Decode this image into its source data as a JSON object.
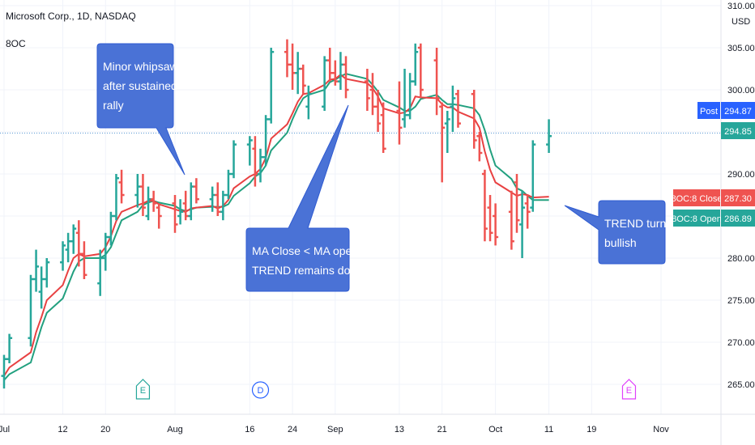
{
  "header": {
    "symbol": "Microsoft Corp., 1D, NASDAQ",
    "indicator": "8OC",
    "currency": "USD"
  },
  "colors": {
    "up": "#26a69a",
    "down": "#ef5350",
    "ma_close": "#e84142",
    "ma_open": "#22a07f",
    "callout": "#4a72d6",
    "callout_border": "#2f5bd1",
    "price_line": "#5b9bd5"
  },
  "price_tags": [
    {
      "label": "Post",
      "value": "294.87",
      "price": 294.87,
      "color": "#2962ff"
    },
    {
      "label": "",
      "value": "294.85",
      "price": 294.85,
      "color": "#26a69a"
    },
    {
      "label": "8OC:8 Close",
      "value": "287.30",
      "price": 287.3,
      "color": "#ef5350"
    },
    {
      "label": "8OC:8 Open",
      "value": "286.89",
      "price": 286.89,
      "color": "#26a69a"
    }
  ],
  "annotations": [
    {
      "lines": [
        "Minor whipsaw",
        "after sustained",
        "rally"
      ]
    },
    {
      "lines": [
        "MA Close < MA open",
        "TREND remains down"
      ]
    },
    {
      "lines": [
        "TREND turns",
        "bullish"
      ]
    }
  ],
  "events": [
    {
      "letter": "E",
      "date": "2021-07-27",
      "color": "#26a69a",
      "shape": "earnings"
    },
    {
      "letter": "D",
      "date": "2021-08-18",
      "color": "#2962ff",
      "shape": "dividend"
    },
    {
      "letter": "E",
      "date": "2021-10-26",
      "color": "#e040fb",
      "shape": "earnings"
    }
  ],
  "chart_data": {
    "type": "ohlc",
    "x_ticks": [
      "Jul",
      "12",
      "20",
      "Aug",
      "16",
      "24",
      "Sep",
      "13",
      "21",
      "Oct",
      "11",
      "19",
      "Nov"
    ],
    "y_ticks": [
      "265.00",
      "270.00",
      "275.00",
      "280.00",
      "285.00",
      "290.00",
      "295.00",
      "300.00",
      "305.00",
      "310.00"
    ],
    "ylim": [
      262,
      310
    ],
    "candles": [
      {
        "d": "2021-07-01",
        "o": 266.0,
        "h": 268.5,
        "l": 264.5,
        "c": 268.0
      },
      {
        "d": "2021-07-02",
        "o": 268.0,
        "h": 271.0,
        "l": 267.5,
        "c": 270.5
      },
      {
        "d": "2021-07-06",
        "o": 270.5,
        "h": 278.0,
        "l": 269.5,
        "c": 277.5
      },
      {
        "d": "2021-07-07",
        "o": 277.5,
        "h": 281.0,
        "l": 276.0,
        "c": 279.0
      },
      {
        "d": "2021-07-08",
        "o": 276.0,
        "h": 279.0,
        "l": 274.0,
        "c": 277.5
      },
      {
        "d": "2021-07-09",
        "o": 277.5,
        "h": 280.0,
        "l": 276.5,
        "c": 279.5
      },
      {
        "d": "2021-07-12",
        "o": 279.5,
        "h": 282.0,
        "l": 278.5,
        "c": 281.5
      },
      {
        "d": "2021-07-13",
        "o": 281.0,
        "h": 283.0,
        "l": 279.5,
        "c": 282.0
      },
      {
        "d": "2021-07-14",
        "o": 282.0,
        "h": 284.0,
        "l": 280.5,
        "c": 283.5
      },
      {
        "d": "2021-07-15",
        "o": 283.0,
        "h": 284.5,
        "l": 279.0,
        "c": 280.5
      },
      {
        "d": "2021-07-16",
        "o": 280.5,
        "h": 282.0,
        "l": 277.5,
        "c": 278.0
      },
      {
        "d": "2021-07-19",
        "o": 277.0,
        "h": 281.0,
        "l": 275.5,
        "c": 280.0
      },
      {
        "d": "2021-07-20",
        "o": 280.0,
        "h": 283.0,
        "l": 278.5,
        "c": 282.5
      },
      {
        "d": "2021-07-21",
        "o": 282.5,
        "h": 285.5,
        "l": 281.5,
        "c": 285.0
      },
      {
        "d": "2021-07-22",
        "o": 285.0,
        "h": 290.0,
        "l": 284.5,
        "c": 289.5
      },
      {
        "d": "2021-07-23",
        "o": 289.0,
        "h": 290.5,
        "l": 286.5,
        "c": 287.5
      },
      {
        "d": "2021-07-26",
        "o": 287.5,
        "h": 290.0,
        "l": 286.0,
        "c": 288.5
      },
      {
        "d": "2021-07-27",
        "o": 288.5,
        "h": 290.0,
        "l": 285.0,
        "c": 286.0
      },
      {
        "d": "2021-07-28",
        "o": 285.0,
        "h": 288.5,
        "l": 284.5,
        "c": 287.0
      },
      {
        "d": "2021-07-29",
        "o": 287.0,
        "h": 288.0,
        "l": 285.5,
        "c": 286.5
      },
      {
        "d": "2021-07-30",
        "o": 286.0,
        "h": 286.5,
        "l": 283.5,
        "c": 285.0
      },
      {
        "d": "2021-08-02",
        "o": 286.5,
        "h": 287.5,
        "l": 283.0,
        "c": 284.0
      },
      {
        "d": "2021-08-03",
        "o": 285.0,
        "h": 287.0,
        "l": 284.0,
        "c": 285.5
      },
      {
        "d": "2021-08-04",
        "o": 286.5,
        "h": 288.0,
        "l": 284.5,
        "c": 285.0
      },
      {
        "d": "2021-08-05",
        "o": 285.0,
        "h": 289.0,
        "l": 284.5,
        "c": 288.5
      },
      {
        "d": "2021-08-06",
        "o": 288.5,
        "h": 289.5,
        "l": 286.5,
        "c": 287.0
      },
      {
        "d": "2021-08-09",
        "o": 287.0,
        "h": 288.5,
        "l": 285.5,
        "c": 287.5
      },
      {
        "d": "2021-08-10",
        "o": 287.5,
        "h": 289.0,
        "l": 285.0,
        "c": 285.5
      },
      {
        "d": "2021-08-11",
        "o": 285.5,
        "h": 288.0,
        "l": 284.5,
        "c": 287.5
      },
      {
        "d": "2021-08-12",
        "o": 287.5,
        "h": 290.5,
        "l": 287.0,
        "c": 290.0
      },
      {
        "d": "2021-08-13",
        "o": 290.0,
        "h": 294.0,
        "l": 289.5,
        "c": 293.5
      },
      {
        "d": "2021-08-16",
        "o": 293.5,
        "h": 294.5,
        "l": 291.0,
        "c": 294.0
      },
      {
        "d": "2021-08-17",
        "o": 293.0,
        "h": 294.5,
        "l": 288.5,
        "c": 290.0
      },
      {
        "d": "2021-08-18",
        "o": 290.0,
        "h": 293.0,
        "l": 289.0,
        "c": 292.0
      },
      {
        "d": "2021-08-19",
        "o": 292.0,
        "h": 297.0,
        "l": 291.0,
        "c": 296.5
      },
      {
        "d": "2021-08-20",
        "o": 296.5,
        "h": 305.0,
        "l": 296.0,
        "c": 304.5
      },
      {
        "d": "2021-08-23",
        "o": 304.5,
        "h": 306.0,
        "l": 301.5,
        "c": 303.0
      },
      {
        "d": "2021-08-24",
        "o": 303.0,
        "h": 305.5,
        "l": 300.0,
        "c": 302.0
      },
      {
        "d": "2021-08-25",
        "o": 302.0,
        "h": 304.5,
        "l": 299.5,
        "c": 302.5
      },
      {
        "d": "2021-08-26",
        "o": 302.5,
        "h": 303.0,
        "l": 299.5,
        "c": 300.5
      },
      {
        "d": "2021-08-27",
        "o": 298.0,
        "h": 300.5,
        "l": 296.5,
        "c": 299.5
      },
      {
        "d": "2021-08-30",
        "o": 298.0,
        "h": 304.0,
        "l": 297.5,
        "c": 303.5
      },
      {
        "d": "2021-08-31",
        "o": 303.5,
        "h": 305.0,
        "l": 301.0,
        "c": 302.0
      },
      {
        "d": "2021-09-01",
        "o": 302.0,
        "h": 303.5,
        "l": 300.5,
        "c": 301.0
      },
      {
        "d": "2021-09-02",
        "o": 301.0,
        "h": 304.5,
        "l": 300.0,
        "c": 303.0
      },
      {
        "d": "2021-09-03",
        "o": 303.0,
        "h": 304.0,
        "l": 299.0,
        "c": 300.0
      },
      {
        "d": "2021-09-07",
        "o": 301.0,
        "h": 302.5,
        "l": 297.5,
        "c": 299.0
      },
      {
        "d": "2021-09-08",
        "o": 300.0,
        "h": 302.0,
        "l": 297.0,
        "c": 298.0
      },
      {
        "d": "2021-09-09",
        "o": 298.0,
        "h": 300.0,
        "l": 295.0,
        "c": 296.0
      },
      {
        "d": "2021-09-10",
        "o": 297.0,
        "h": 298.5,
        "l": 292.5,
        "c": 293.0
      },
      {
        "d": "2021-09-13",
        "o": 297.5,
        "h": 301.0,
        "l": 293.5,
        "c": 295.5
      },
      {
        "d": "2021-09-14",
        "o": 296.5,
        "h": 302.5,
        "l": 295.5,
        "c": 297.0
      },
      {
        "d": "2021-09-15",
        "o": 297.0,
        "h": 302.0,
        "l": 296.5,
        "c": 301.0
      },
      {
        "d": "2021-09-16",
        "o": 301.0,
        "h": 305.5,
        "l": 300.5,
        "c": 304.5
      },
      {
        "d": "2021-09-17",
        "o": 305.0,
        "h": 305.5,
        "l": 299.0,
        "c": 300.0
      },
      {
        "d": "2021-09-20",
        "o": 303.5,
        "h": 305.0,
        "l": 297.0,
        "c": 299.0
      },
      {
        "d": "2021-09-21",
        "o": 298.0,
        "h": 298.5,
        "l": 289.0,
        "c": 295.5
      },
      {
        "d": "2021-09-22",
        "o": 296.0,
        "h": 297.5,
        "l": 292.5,
        "c": 296.5
      },
      {
        "d": "2021-09-23",
        "o": 298.0,
        "h": 300.5,
        "l": 295.0,
        "c": 299.0
      },
      {
        "d": "2021-09-24",
        "o": 299.5,
        "h": 300.0,
        "l": 295.5,
        "c": 296.0
      },
      {
        "d": "2021-09-27",
        "o": 299.5,
        "h": 300.0,
        "l": 293.0,
        "c": 294.0
      },
      {
        "d": "2021-09-28",
        "o": 294.5,
        "h": 295.0,
        "l": 291.5,
        "c": 292.5
      },
      {
        "d": "2021-09-29",
        "o": 290.0,
        "h": 290.5,
        "l": 282.0,
        "c": 283.5
      },
      {
        "d": "2021-09-30",
        "o": 286.0,
        "h": 287.5,
        "l": 282.0,
        "c": 283.0
      },
      {
        "d": "2021-10-01",
        "o": 285.0,
        "h": 286.5,
        "l": 281.5,
        "c": 282.5
      },
      {
        "d": "2021-10-04",
        "o": 285.5,
        "h": 288.0,
        "l": 281.0,
        "c": 282.0
      },
      {
        "d": "2021-10-05",
        "o": 289.0,
        "h": 290.0,
        "l": 283.0,
        "c": 284.5
      },
      {
        "d": "2021-10-06",
        "o": 284.0,
        "h": 288.0,
        "l": 280.0,
        "c": 286.0
      },
      {
        "d": "2021-10-07",
        "o": 286.5,
        "h": 287.5,
        "l": 283.5,
        "c": 285.5
      },
      {
        "d": "2021-10-08",
        "o": 286.0,
        "h": 294.0,
        "l": 285.5,
        "c": 293.5
      },
      {
        "d": "2021-10-11",
        "o": 293.5,
        "h": 296.5,
        "l": 292.5,
        "c": 294.5
      }
    ],
    "ma_close": [
      266.0,
      267.0,
      268.8,
      271.2,
      273.0,
      275.0,
      276.8,
      278.5,
      280.0,
      280.5,
      280.2,
      280.5,
      281.3,
      282.6,
      284.4,
      285.5,
      286.3,
      286.5,
      286.8,
      286.8,
      286.4,
      285.8,
      285.6,
      285.5,
      285.9,
      286.0,
      286.2,
      285.9,
      286.2,
      286.9,
      288.3,
      289.7,
      290.0,
      290.6,
      291.9,
      294.2,
      295.9,
      297.2,
      298.6,
      299.5,
      299.6,
      300.6,
      301.2,
      301.3,
      301.8,
      301.3,
      300.8,
      300.2,
      299.2,
      297.8,
      297.2,
      297.3,
      297.8,
      299.2,
      299.1,
      299.0,
      298.3,
      297.9,
      297.9,
      297.4,
      296.6,
      295.5,
      292.7,
      290.5,
      289.0,
      287.8,
      287.4,
      287.6,
      287.5,
      287.2,
      287.3
    ],
    "ma_open": [
      265.5,
      266.2,
      267.6,
      269.7,
      271.8,
      273.5,
      275.2,
      276.8,
      278.4,
      279.6,
      280.0,
      280.0,
      280.4,
      281.3,
      282.9,
      284.5,
      285.5,
      286.3,
      286.6,
      286.8,
      286.6,
      286.2,
      285.8,
      285.6,
      285.8,
      286.0,
      286.1,
      286.1,
      286.1,
      286.4,
      287.4,
      288.9,
      289.7,
      290.1,
      291.0,
      292.8,
      294.9,
      296.5,
      297.9,
      299.0,
      299.4,
      300.0,
      300.9,
      301.2,
      301.6,
      301.9,
      301.3,
      300.6,
      299.8,
      298.8,
      297.9,
      297.5,
      297.5,
      298.0,
      298.9,
      299.4,
      298.8,
      298.3,
      298.3,
      298.2,
      297.8,
      297.0,
      295.2,
      292.9,
      291.0,
      289.4,
      288.3,
      288.0,
      287.4,
      286.9,
      286.9
    ],
    "price_line": 294.85,
    "grid": true
  }
}
